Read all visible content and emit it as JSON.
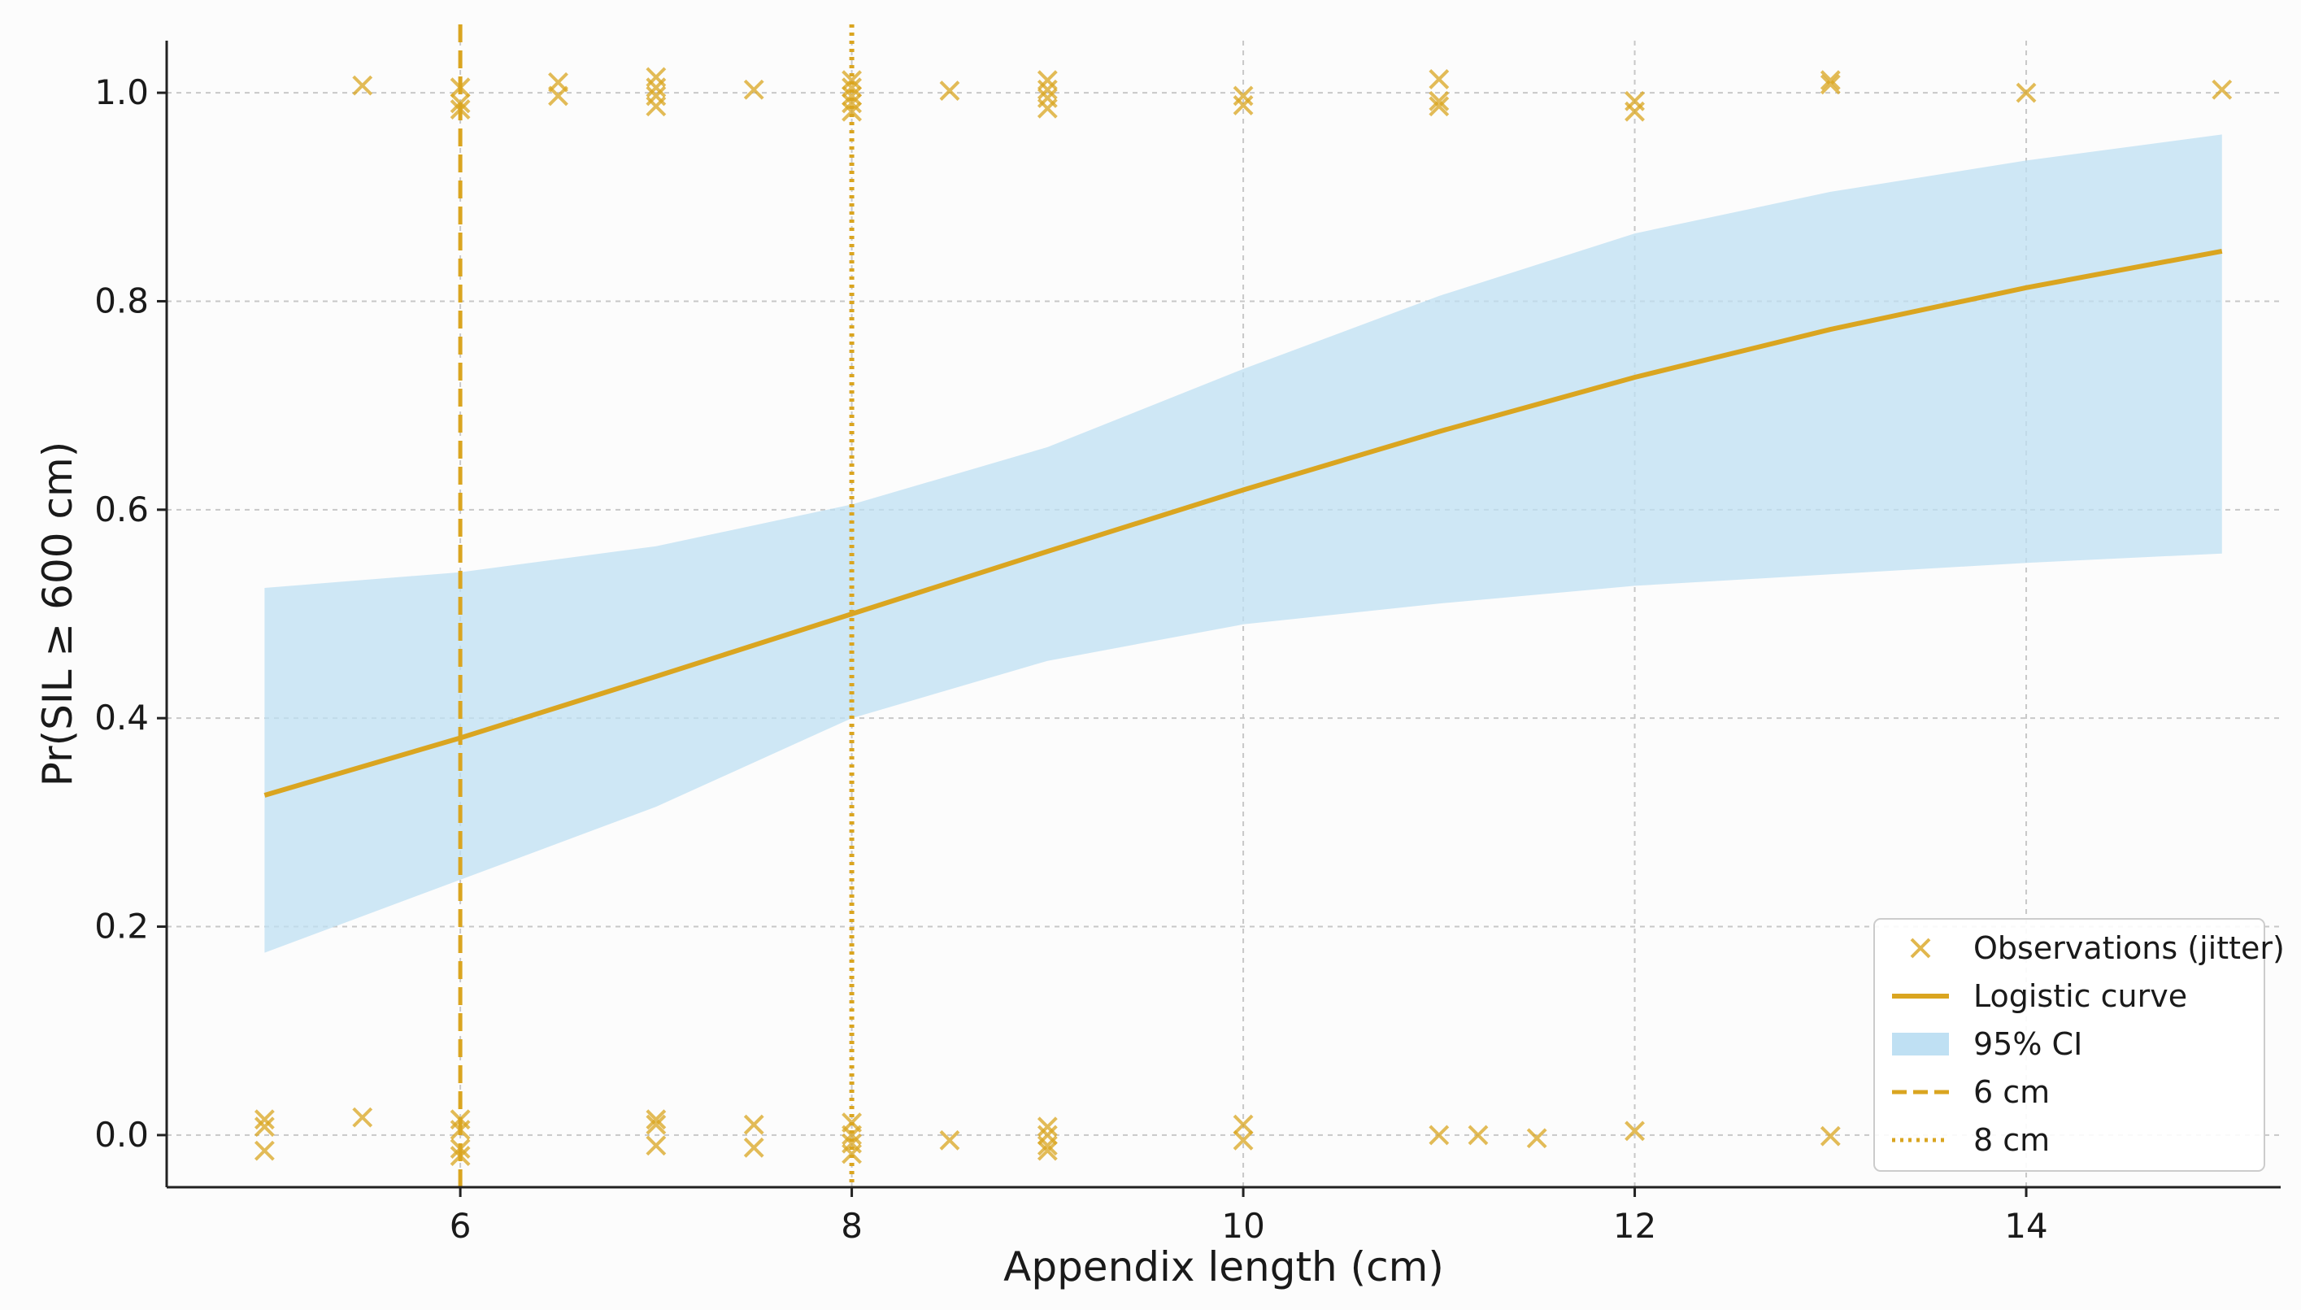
{
  "chart_data": {
    "type": "scatter",
    "xlabel": "Appendix length (cm)",
    "ylabel": "Pr(SIL ≥ 600 cm)",
    "xlim": [
      4.5,
      15.3
    ],
    "ylim": [
      -0.05,
      1.05
    ],
    "xticks": [
      6,
      8,
      10,
      12,
      14
    ],
    "yticks": [
      0.0,
      0.2,
      0.4,
      0.6,
      0.8,
      1.0
    ],
    "grid": true,
    "legend_position": "lower-right",
    "colors": {
      "accent": "#DAA520",
      "ci_fill": "#BFE0F3",
      "grid": "#c8c8c8",
      "axis": "#222222"
    },
    "series": [
      {
        "name": "Observations (jitter)",
        "kind": "scatter",
        "marker": "x",
        "points": [
          {
            "x": 5.0,
            "y": 0.015
          },
          {
            "x": 5.0,
            "y": 0.008
          },
          {
            "x": 5.0,
            "y": -0.015
          },
          {
            "x": 5.5,
            "y": 1.007
          },
          {
            "x": 5.5,
            "y": 0.017
          },
          {
            "x": 6.0,
            "y": 1.005
          },
          {
            "x": 6.0,
            "y": 0.99
          },
          {
            "x": 6.0,
            "y": 0.984
          },
          {
            "x": 6.0,
            "y": 0.015
          },
          {
            "x": 6.0,
            "y": 0.005
          },
          {
            "x": 6.0,
            "y": -0.013
          },
          {
            "x": 6.0,
            "y": -0.02
          },
          {
            "x": 6.5,
            "y": 1.01
          },
          {
            "x": 6.5,
            "y": 0.997
          },
          {
            "x": 7.0,
            "y": 1.015
          },
          {
            "x": 7.0,
            "y": 1.005
          },
          {
            "x": 7.0,
            "y": 0.997
          },
          {
            "x": 7.0,
            "y": 0.987
          },
          {
            "x": 7.0,
            "y": 0.015
          },
          {
            "x": 7.0,
            "y": 0.01
          },
          {
            "x": 7.0,
            "y": -0.01
          },
          {
            "x": 7.5,
            "y": 1.003
          },
          {
            "x": 7.5,
            "y": 0.01
          },
          {
            "x": 7.5,
            "y": -0.012
          },
          {
            "x": 8.0,
            "y": 1.012
          },
          {
            "x": 8.0,
            "y": 1.005
          },
          {
            "x": 8.0,
            "y": 0.997
          },
          {
            "x": 8.0,
            "y": 0.99
          },
          {
            "x": 8.0,
            "y": 0.982
          },
          {
            "x": 8.0,
            "y": 0.012
          },
          {
            "x": 8.0,
            "y": 0.0
          },
          {
            "x": 8.0,
            "y": -0.008
          },
          {
            "x": 8.0,
            "y": -0.018
          },
          {
            "x": 8.5,
            "y": 1.002
          },
          {
            "x": 8.5,
            "y": -0.005
          },
          {
            "x": 9.0,
            "y": 1.012
          },
          {
            "x": 9.0,
            "y": 1.003
          },
          {
            "x": 9.0,
            "y": 0.995
          },
          {
            "x": 9.0,
            "y": 0.985
          },
          {
            "x": 9.0,
            "y": 0.008
          },
          {
            "x": 9.0,
            "y": 0.0
          },
          {
            "x": 9.0,
            "y": -0.01
          },
          {
            "x": 9.0,
            "y": -0.015
          },
          {
            "x": 10.0,
            "y": 0.997
          },
          {
            "x": 10.0,
            "y": 0.988
          },
          {
            "x": 10.0,
            "y": 0.01
          },
          {
            "x": 10.0,
            "y": -0.005
          },
          {
            "x": 11.0,
            "y": 1.013
          },
          {
            "x": 11.0,
            "y": 0.992
          },
          {
            "x": 11.0,
            "y": 0.987
          },
          {
            "x": 11.0,
            "y": 0.0
          },
          {
            "x": 11.2,
            "y": 0.0
          },
          {
            "x": 11.5,
            "y": -0.003
          },
          {
            "x": 12.0,
            "y": 0.992
          },
          {
            "x": 12.0,
            "y": 0.982
          },
          {
            "x": 12.0,
            "y": 0.004
          },
          {
            "x": 13.0,
            "y": 1.012
          },
          {
            "x": 13.0,
            "y": 1.008
          },
          {
            "x": 13.0,
            "y": -0.001
          },
          {
            "x": 14.0,
            "y": 1.0
          },
          {
            "x": 15.0,
            "y": 1.003
          }
        ]
      },
      {
        "name": "Logistic curve",
        "kind": "line",
        "style": "solid",
        "x": [
          5,
          6,
          7,
          8,
          9,
          10,
          11,
          12,
          13,
          14,
          15
        ],
        "y": [
          0.326,
          0.381,
          0.44,
          0.5,
          0.56,
          0.619,
          0.675,
          0.727,
          0.773,
          0.813,
          0.848
        ]
      },
      {
        "name": "95% CI",
        "kind": "band",
        "x": [
          5,
          6,
          7,
          8,
          9,
          10,
          11,
          12,
          13,
          14,
          15
        ],
        "lower": [
          0.175,
          0.245,
          0.315,
          0.4,
          0.455,
          0.49,
          0.51,
          0.527,
          0.538,
          0.549,
          0.558
        ],
        "upper": [
          0.525,
          0.54,
          0.565,
          0.605,
          0.66,
          0.735,
          0.805,
          0.865,
          0.905,
          0.935,
          0.96
        ]
      },
      {
        "name": "6 cm",
        "kind": "vline",
        "style": "dashed",
        "x": 6
      },
      {
        "name": "8 cm",
        "kind": "vline",
        "style": "dotted",
        "x": 8
      }
    ]
  }
}
